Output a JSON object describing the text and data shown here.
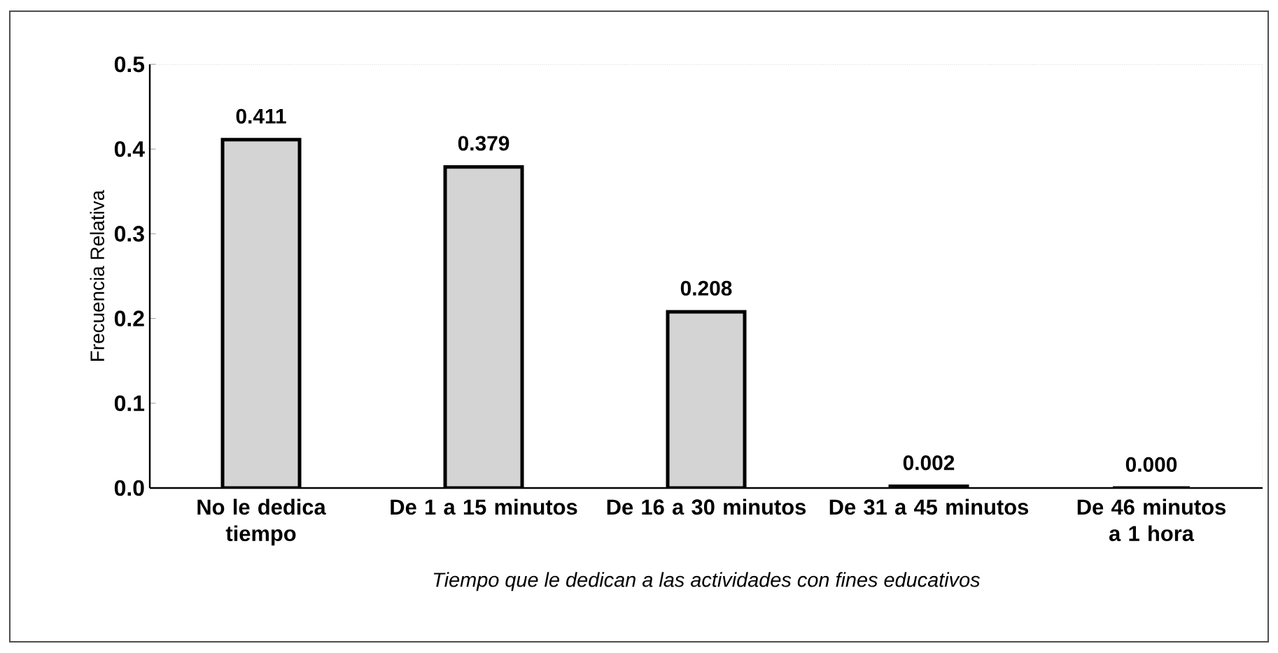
{
  "chart_data": {
    "type": "bar",
    "xlabel": "Tiempo que le dedican a las actividades con fines educativos",
    "ylabel": "Frecuencia Relativa",
    "categories": [
      "No le dedica tiempo",
      "De 1 a 15 minutos",
      "De 16 a 30 minutos",
      "De 31 a 45 minutos",
      "De 46 minutos a 1 hora"
    ],
    "values": [
      0.411,
      0.379,
      0.208,
      0.002,
      0.0
    ],
    "value_labels": [
      "0.411",
      "0.379",
      "0.208",
      "0.002",
      "0.000"
    ],
    "color": "#d4d4d4",
    "ylim": [
      0,
      0.5
    ],
    "yticks": [
      {
        "value": 0,
        "label": "0.0"
      },
      0.1,
      0.2,
      0.3,
      0.4,
      0.5
    ],
    "grid": false
  }
}
